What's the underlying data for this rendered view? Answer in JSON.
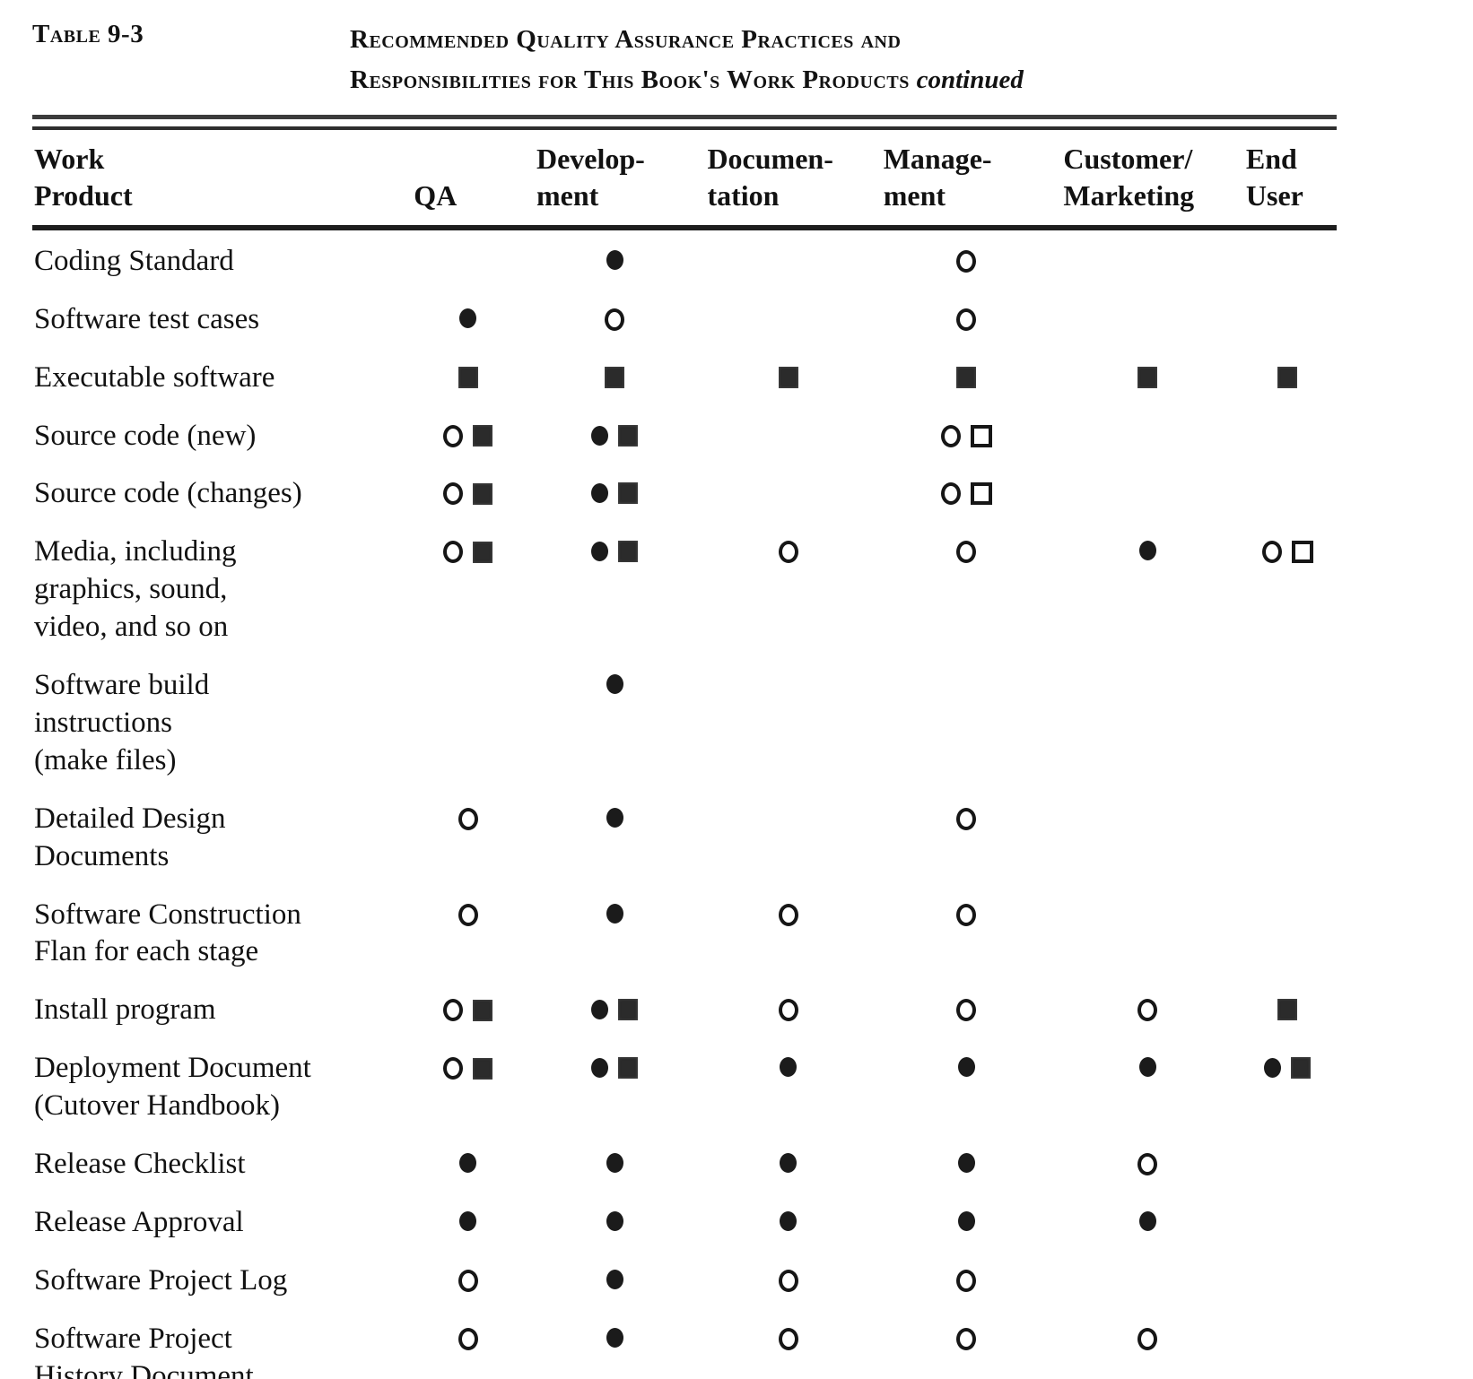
{
  "document": {
    "label": "Table 9-3",
    "title_line1": "Recommended Quality Assurance Practices and",
    "title_line2": "Responsibilities for This Book's Work Products",
    "title_continued": "continued"
  },
  "symbols_legend": {
    "filled-circle": "●",
    "open-circle": "○",
    "filled-square": "■",
    "open-square": "□"
  },
  "table": {
    "columns": [
      {
        "line1": "Work",
        "line2": "Product"
      },
      {
        "line1": "",
        "line2": "QA"
      },
      {
        "line1": "Develop-",
        "line2": "ment"
      },
      {
        "line1": "Documen-",
        "line2": "tation"
      },
      {
        "line1": "Manage-",
        "line2": "ment"
      },
      {
        "line1": "Customer/",
        "line2": "Marketing"
      },
      {
        "line1": "End",
        "line2": "User"
      }
    ],
    "rows": [
      {
        "product": "Coding Standard",
        "cells": [
          [],
          [
            "filled-circle"
          ],
          [],
          [
            "open-circle"
          ],
          [],
          []
        ]
      },
      {
        "product": "Software test cases",
        "cells": [
          [
            "filled-circle"
          ],
          [
            "open-circle"
          ],
          [],
          [
            "open-circle"
          ],
          [],
          []
        ]
      },
      {
        "product": "Executable software",
        "cells": [
          [
            "filled-square"
          ],
          [
            "filled-square"
          ],
          [
            "filled-square"
          ],
          [
            "filled-square"
          ],
          [
            "filled-square"
          ],
          [
            "filled-square"
          ]
        ]
      },
      {
        "product": "Source code (new)",
        "cells": [
          [
            "open-circle",
            "filled-square"
          ],
          [
            "filled-circle",
            "filled-square"
          ],
          [],
          [
            "open-circle",
            "open-square"
          ],
          [],
          []
        ]
      },
      {
        "product": "Source code (changes)",
        "cells": [
          [
            "open-circle",
            "filled-square"
          ],
          [
            "filled-circle",
            "filled-square"
          ],
          [],
          [
            "open-circle",
            "open-square"
          ],
          [],
          []
        ]
      },
      {
        "product": "Media, including\ngraphics, sound,\nvideo, and so on",
        "cells": [
          [
            "open-circle",
            "filled-square"
          ],
          [
            "filled-circle",
            "filled-square"
          ],
          [
            "open-circle"
          ],
          [
            "open-circle"
          ],
          [
            "filled-circle"
          ],
          [
            "open-circle",
            "open-square"
          ]
        ]
      },
      {
        "product": "Software  build\ninstructions\n(make files)",
        "cells": [
          [],
          [
            "filled-circle"
          ],
          [],
          [],
          [],
          []
        ]
      },
      {
        "product": "Detailed Design\nDocuments",
        "cells": [
          [
            "open-circle"
          ],
          [
            "filled-circle"
          ],
          [],
          [
            "open-circle"
          ],
          [],
          []
        ]
      },
      {
        "product": "Software  Construction\nFlan for each stage",
        "cells": [
          [
            "open-circle"
          ],
          [
            "filled-circle"
          ],
          [
            "open-circle"
          ],
          [
            "open-circle"
          ],
          [],
          []
        ]
      },
      {
        "product": "Install program",
        "cells": [
          [
            "open-circle",
            "filled-square"
          ],
          [
            "filled-circle",
            "filled-square"
          ],
          [
            "open-circle"
          ],
          [
            "open-circle"
          ],
          [
            "open-circle"
          ],
          [
            "filled-square"
          ]
        ]
      },
      {
        "product": "Deployment Document\n(Cutover  Handbook)",
        "cells": [
          [
            "open-circle",
            "filled-square"
          ],
          [
            "filled-circle",
            "filled-square"
          ],
          [
            "filled-circle"
          ],
          [
            "filled-circle"
          ],
          [
            "filled-circle"
          ],
          [
            "filled-circle",
            "filled-square"
          ]
        ]
      },
      {
        "product": "Release  Checklist",
        "cells": [
          [
            "filled-circle"
          ],
          [
            "filled-circle"
          ],
          [
            "filled-circle"
          ],
          [
            "filled-circle"
          ],
          [
            "open-circle"
          ],
          []
        ]
      },
      {
        "product": "Release  Approval",
        "cells": [
          [
            "filled-circle"
          ],
          [
            "filled-circle"
          ],
          [
            "filled-circle"
          ],
          [
            "filled-circle"
          ],
          [
            "filled-circle"
          ],
          []
        ]
      },
      {
        "product": "Software Project Log",
        "cells": [
          [
            "open-circle"
          ],
          [
            "filled-circle"
          ],
          [
            "open-circle"
          ],
          [
            "open-circle"
          ],
          [],
          []
        ]
      },
      {
        "product": "Software Project\nHistory Document",
        "cells": [
          [
            "open-circle"
          ],
          [
            "filled-circle"
          ],
          [
            "open-circle"
          ],
          [
            "open-circle"
          ],
          [
            "open-circle"
          ],
          []
        ]
      }
    ]
  }
}
